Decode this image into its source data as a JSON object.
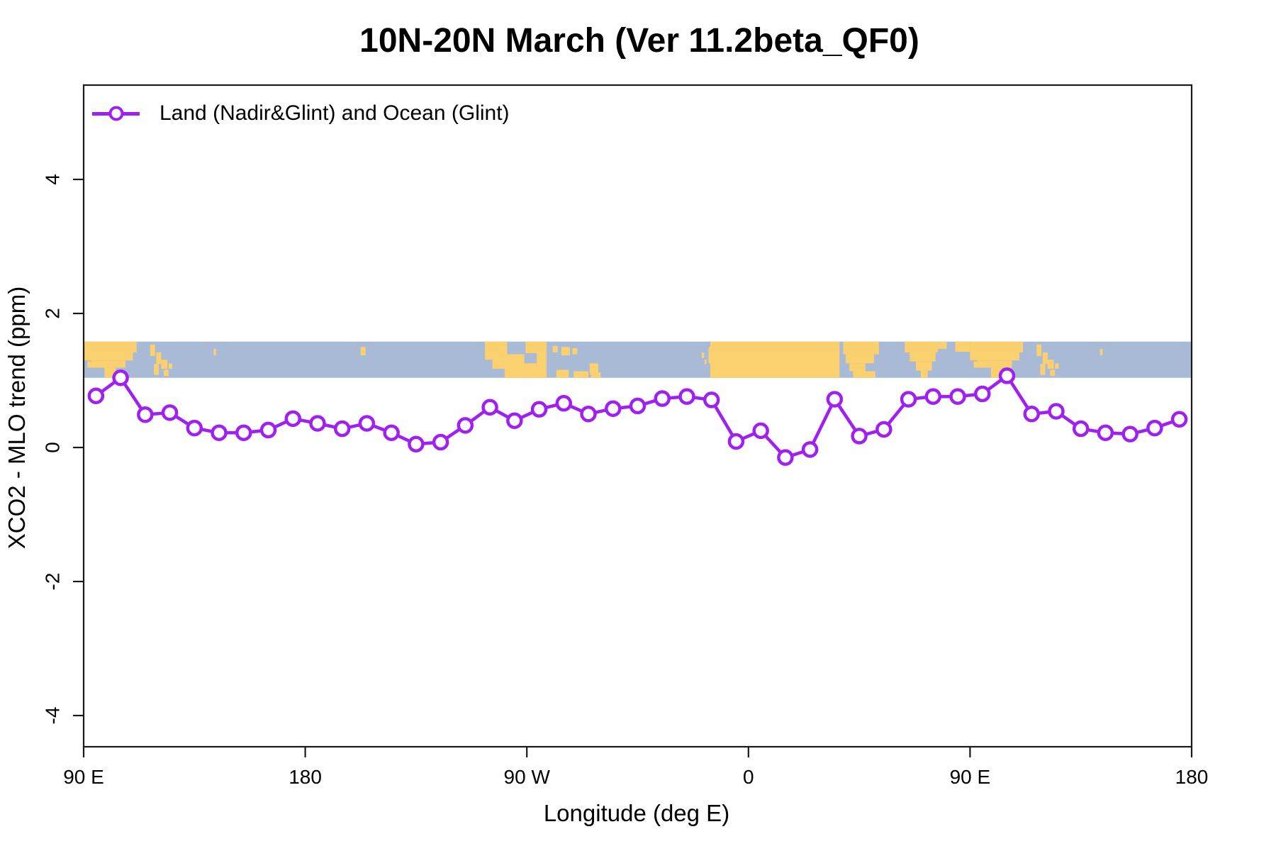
{
  "page": {
    "background": "#ffffff"
  },
  "header": {
    "title": "10N-20N March (Ver 11.2beta_QF0)"
  },
  "legend": {
    "label": "Land (Nadir&Glint) and Ocean (Glint)",
    "marker": "open-circle",
    "color": "#A020F0"
  },
  "axes": {
    "x": {
      "label": "Longitude (deg E)"
    },
    "y": {
      "label": "XCO2 - MLO trend (ppm)"
    }
  },
  "colors": {
    "series": "#A020F0",
    "ocean": "#A9BAD6",
    "land": "#FBD06E",
    "axis": "#1a1a1a"
  },
  "chart_data": {
    "type": "line",
    "title": "10N-20N March (Ver 11.2beta_QF0)",
    "xlabel": "Longitude (deg E)",
    "ylabel": "XCO2 - MLO trend (ppm)",
    "xlim": [
      90,
      540
    ],
    "ylim": [
      -4.47,
      5.41
    ],
    "x_ticks": [
      {
        "deg": 90,
        "label": "90 E"
      },
      {
        "deg": 180,
        "label": "180"
      },
      {
        "deg": 270,
        "label": "90 W"
      },
      {
        "deg": 360,
        "label": "0"
      },
      {
        "deg": 450,
        "label": "90 E"
      },
      {
        "deg": 540,
        "label": "180"
      }
    ],
    "y_ticks": [
      -4,
      -2,
      0,
      2,
      4
    ],
    "grid": false,
    "legend_position": "top-left-inside",
    "series": [
      {
        "name": "Land (Nadir&Glint) and Ocean (Glint)",
        "color": "#A020F0",
        "marker": "open-circle",
        "x": [
          95,
          105,
          115,
          125,
          135,
          145,
          155,
          165,
          175,
          185,
          195,
          205,
          215,
          225,
          235,
          245,
          255,
          265,
          275,
          285,
          295,
          305,
          315,
          325,
          335,
          345,
          355,
          365,
          375,
          385,
          395,
          405,
          415,
          425,
          435,
          445,
          455,
          465,
          475,
          485,
          495,
          505,
          515,
          525,
          535
        ],
        "y": [
          0.77,
          1.04,
          0.49,
          0.52,
          0.29,
          0.22,
          0.22,
          0.26,
          0.43,
          0.36,
          0.28,
          0.36,
          0.22,
          0.05,
          0.08,
          0.33,
          0.6,
          0.4,
          0.57,
          0.66,
          0.5,
          0.58,
          0.62,
          0.73,
          0.76,
          0.71,
          0.09,
          0.25,
          -0.15,
          -0.03,
          0.72,
          0.17,
          0.27,
          0.72,
          0.76,
          0.76,
          0.8,
          1.07,
          0.5,
          0.54,
          0.28,
          0.22,
          0.2,
          0.29,
          0.42
        ]
      }
    ],
    "map_band": {
      "description": "10N-20N latitude world-map strip (ocean/land)",
      "ppm_top": 1.58,
      "ppm_bottom": 1.04,
      "ocean_color": "#A9BAD6",
      "land_color": "#FBD06E",
      "land_rects": [
        [
          90,
          110,
          0,
          0.52
        ],
        [
          93,
          107,
          0.52,
          0.72
        ],
        [
          98.5,
          103,
          0.72,
          1
        ],
        [
          107.5,
          111.5,
          0,
          0.3
        ],
        [
          91.5,
          93,
          0.55,
          0.72
        ],
        [
          117,
          119,
          0.08,
          0.4
        ],
        [
          119.5,
          121.5,
          0.3,
          0.62
        ],
        [
          118.5,
          120.5,
          0.62,
          0.92
        ],
        [
          121.5,
          124,
          0.5,
          0.75
        ],
        [
          122.5,
          124.5,
          0.78,
          0.95
        ],
        [
          124.5,
          126,
          0.6,
          0.75
        ],
        [
          142.8,
          143.8,
          0.2,
          0.38
        ],
        [
          202.5,
          204.5,
          0.15,
          0.38
        ],
        [
          253,
          262,
          0,
          0.5
        ],
        [
          256,
          269,
          0.35,
          0.75
        ],
        [
          261,
          274,
          0.6,
          1
        ],
        [
          268,
          278,
          0.75,
          1
        ],
        [
          269.5,
          278,
          0,
          0.32
        ],
        [
          274,
          278,
          0.32,
          0.75
        ],
        [
          280.5,
          282.5,
          0.12,
          0.3
        ],
        [
          284,
          287.5,
          0.15,
          0.38
        ],
        [
          288.5,
          290.5,
          0.18,
          0.35
        ],
        [
          282,
          287,
          0.78,
          1
        ],
        [
          289,
          295,
          0.82,
          1
        ],
        [
          295.5,
          299,
          0.6,
          0.9
        ],
        [
          296,
          300,
          0.85,
          1
        ],
        [
          341,
          342,
          0.3,
          0.45
        ],
        [
          342.2,
          343,
          0.5,
          0.62
        ],
        [
          344.5,
          397,
          0,
          1
        ],
        [
          343.8,
          344.5,
          0.15,
          0.6
        ],
        [
          398.5,
          413,
          0,
          0.35
        ],
        [
          399.5,
          411,
          0.35,
          0.6
        ],
        [
          401,
          407.5,
          0.6,
          0.82
        ],
        [
          402.5,
          411.5,
          0.82,
          1
        ],
        [
          423.5,
          437,
          0,
          0.3
        ],
        [
          425.5,
          436,
          0.3,
          0.55
        ],
        [
          428,
          434.5,
          0.55,
          0.8
        ],
        [
          430,
          432.8,
          0.8,
          1
        ],
        [
          437,
          440.5,
          0,
          0.2
        ],
        [
          444,
          450,
          0,
          0.28
        ],
        [
          450,
          470,
          0,
          0.52
        ],
        [
          453,
          467,
          0.52,
          0.72
        ],
        [
          458.5,
          463,
          0.72,
          1
        ],
        [
          467.5,
          471.5,
          0,
          0.3
        ],
        [
          451.5,
          453,
          0.55,
          0.72
        ],
        [
          477,
          479,
          0.08,
          0.4
        ],
        [
          479.5,
          481.5,
          0.3,
          0.62
        ],
        [
          478.5,
          480.5,
          0.62,
          0.92
        ],
        [
          481.5,
          484,
          0.5,
          0.75
        ],
        [
          482.5,
          484.5,
          0.78,
          0.95
        ],
        [
          484.5,
          486,
          0.6,
          0.75
        ],
        [
          502.8,
          503.8,
          0.2,
          0.38
        ]
      ]
    }
  }
}
